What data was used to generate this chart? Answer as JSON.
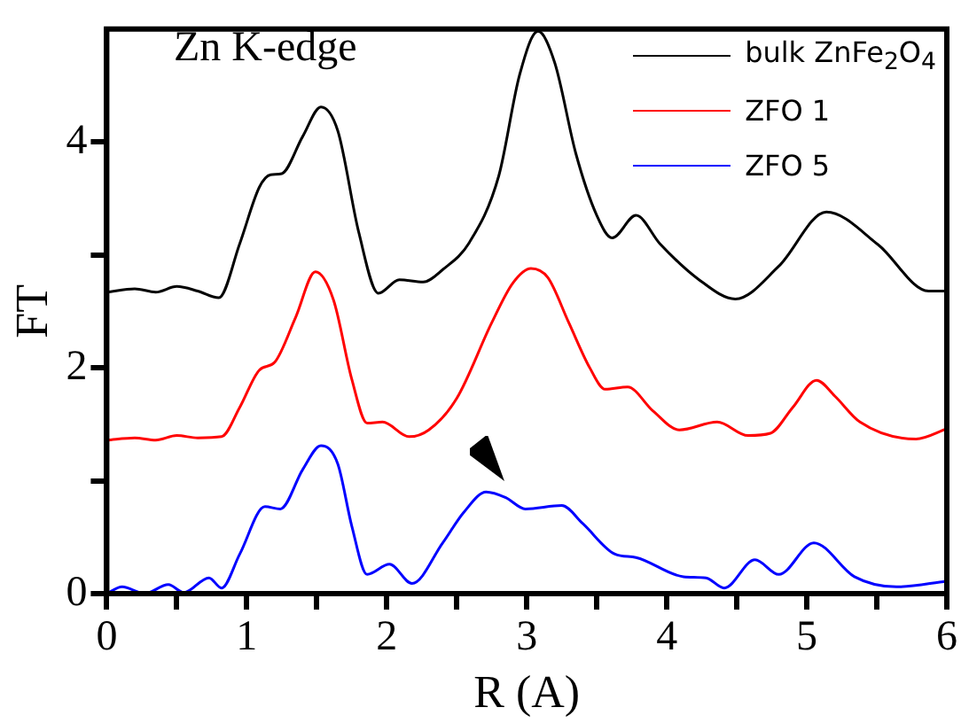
{
  "chart_data": {
    "type": "line",
    "title": "Zn K-edge",
    "xlabel": "R (A)",
    "ylabel": "FT",
    "xlim": [
      0,
      6
    ],
    "ylim": [
      0,
      5
    ],
    "xticks": [
      0,
      {
        "value": 0.5,
        "label": null
      },
      1,
      {
        "value": 1.5,
        "label": null
      },
      2,
      {
        "value": 2.5,
        "label": null
      },
      3,
      {
        "value": 3.5,
        "label": null
      },
      4,
      {
        "value": 4.5,
        "label": null
      },
      5,
      {
        "value": 5.5,
        "label": null
      },
      6
    ],
    "yticks": [
      0,
      {
        "value": 1,
        "label": null
      },
      2,
      {
        "value": 3,
        "label": null
      },
      4
    ],
    "grid": false,
    "legend": "top right",
    "marker": "none",
    "line_style": "solid",
    "series": [
      {
        "name": "bulk ZnFe$_{2}$O$_{4}$",
        "color": "#000000",
        "x": [
          0,
          0.2,
          0.35,
          0.5,
          0.65,
          0.8,
          0.95,
          1.09,
          1.17,
          1.25,
          1.4,
          1.53,
          1.65,
          1.8,
          1.94,
          2.09,
          2.26,
          2.4,
          2.59,
          2.8,
          2.95,
          3.08,
          3.2,
          3.35,
          3.5,
          3.61,
          3.78,
          3.95,
          4.22,
          4.49,
          4.8,
          5.14,
          5.51,
          5.87,
          6
        ],
        "values": [
          2.67,
          2.7,
          2.67,
          2.72,
          2.68,
          2.62,
          3.1,
          3.6,
          3.71,
          3.72,
          4.05,
          4.31,
          4.1,
          3.2,
          2.66,
          2.78,
          2.76,
          2.87,
          3.11,
          3.7,
          4.6,
          4.98,
          4.7,
          3.9,
          3.35,
          3.15,
          3.35,
          3.1,
          2.79,
          2.61,
          2.9,
          3.38,
          3.09,
          2.68,
          2.68
        ]
      },
      {
        "name": "ZFO 1",
        "color": "#ff0000",
        "x": [
          0,
          0.2,
          0.35,
          0.5,
          0.65,
          0.82,
          0.95,
          1.09,
          1.2,
          1.35,
          1.49,
          1.62,
          1.75,
          1.86,
          1.97,
          2.16,
          2.3,
          2.5,
          2.75,
          2.9,
          3.03,
          3.15,
          3.3,
          3.45,
          3.56,
          3.72,
          3.9,
          4.09,
          4.36,
          4.58,
          4.74,
          4.9,
          5.07,
          5.2,
          5.38,
          5.78,
          6
        ],
        "values": [
          1.36,
          1.38,
          1.36,
          1.4,
          1.38,
          1.39,
          1.65,
          1.98,
          2.05,
          2.45,
          2.85,
          2.6,
          1.9,
          1.51,
          1.52,
          1.39,
          1.45,
          1.73,
          2.4,
          2.75,
          2.88,
          2.8,
          2.4,
          2.0,
          1.81,
          1.83,
          1.62,
          1.45,
          1.52,
          1.4,
          1.42,
          1.65,
          1.89,
          1.75,
          1.52,
          1.37,
          1.46
        ]
      },
      {
        "name": "ZFO 5",
        "color": "#0000ff",
        "x": [
          0,
          0.11,
          0.27,
          0.44,
          0.55,
          0.73,
          0.82,
          0.95,
          1.13,
          1.24,
          1.4,
          1.53,
          1.65,
          1.75,
          1.86,
          2.02,
          2.18,
          2.4,
          2.55,
          2.71,
          2.85,
          2.99,
          3.25,
          3.4,
          3.63,
          3.78,
          4.12,
          4.28,
          4.41,
          4.63,
          4.8,
          5.05,
          5.34,
          5.64,
          6
        ],
        "values": [
          0,
          0.06,
          0,
          0.08,
          0.01,
          0.14,
          0.05,
          0.35,
          0.77,
          0.75,
          1.1,
          1.31,
          1.15,
          0.6,
          0.17,
          0.26,
          0.09,
          0.45,
          0.72,
          0.9,
          0.85,
          0.75,
          0.78,
          0.62,
          0.35,
          0.32,
          0.15,
          0.14,
          0.05,
          0.3,
          0.17,
          0.45,
          0.15,
          0.06,
          0.11
        ]
      }
    ]
  }
}
